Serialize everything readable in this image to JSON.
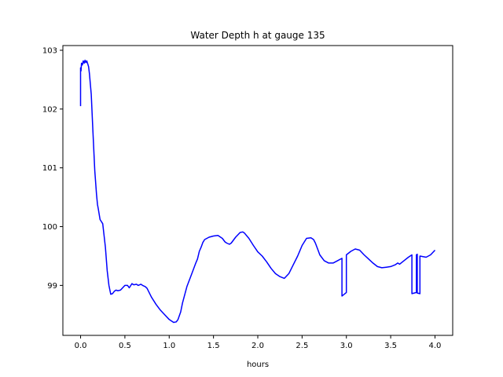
{
  "chart_data": {
    "type": "line",
    "title": "Water Depth h at gauge 135",
    "xlabel": "hours",
    "ylabel": "",
    "xlim": [
      -0.2,
      4.2
    ],
    "ylim": [
      98.15,
      103.08
    ],
    "xticks": [
      0.0,
      0.5,
      1.0,
      1.5,
      2.0,
      2.5,
      3.0,
      3.5,
      4.0
    ],
    "xtick_labels": [
      "0.0",
      "0.5",
      "1.0",
      "1.5",
      "2.0",
      "2.5",
      "3.0",
      "3.5",
      "4.0"
    ],
    "yticks": [
      99,
      100,
      101,
      102,
      103
    ],
    "ytick_labels": [
      "99",
      "100",
      "101",
      "102",
      "103"
    ],
    "grid": false,
    "series": [
      {
        "color": "#0000ff",
        "x": [
          0.0,
          0.0,
          0.005,
          0.01,
          0.02,
          0.03,
          0.04,
          0.05,
          0.06,
          0.07,
          0.08,
          0.09,
          0.1,
          0.12,
          0.14,
          0.16,
          0.18,
          0.19,
          0.2,
          0.22,
          0.25,
          0.28,
          0.3,
          0.32,
          0.34,
          0.36,
          0.38,
          0.4,
          0.42,
          0.45,
          0.5,
          0.53,
          0.55,
          0.58,
          0.6,
          0.63,
          0.65,
          0.68,
          0.7,
          0.73,
          0.75,
          0.8,
          0.85,
          0.9,
          0.95,
          1.0,
          1.05,
          1.08,
          1.1,
          1.13,
          1.15,
          1.2,
          1.25,
          1.3,
          1.32,
          1.34,
          1.36,
          1.38,
          1.4,
          1.45,
          1.5,
          1.55,
          1.6,
          1.63,
          1.65,
          1.68,
          1.7,
          1.75,
          1.8,
          1.83,
          1.85,
          1.9,
          1.95,
          2.0,
          2.05,
          2.1,
          2.15,
          2.2,
          2.25,
          2.3,
          2.35,
          2.4,
          2.45,
          2.5,
          2.55,
          2.6,
          2.63,
          2.65,
          2.68,
          2.7,
          2.75,
          2.8,
          2.85,
          2.9,
          2.95,
          2.95,
          3.0,
          3.0,
          3.05,
          3.1,
          3.15,
          3.2,
          3.25,
          3.3,
          3.35,
          3.4,
          3.45,
          3.5,
          3.55,
          3.58,
          3.6,
          3.65,
          3.7,
          3.74,
          3.74,
          3.79,
          3.79,
          3.8,
          3.8,
          3.83,
          3.83,
          3.9,
          3.95,
          4.0
        ],
        "y": [
          102.05,
          102.7,
          102.65,
          102.78,
          102.75,
          102.82,
          102.78,
          102.83,
          102.79,
          102.82,
          102.77,
          102.72,
          102.6,
          102.25,
          101.6,
          100.95,
          100.55,
          100.38,
          100.3,
          100.12,
          100.05,
          99.65,
          99.25,
          99.0,
          98.85,
          98.86,
          98.9,
          98.92,
          98.91,
          98.92,
          99.0,
          99.0,
          98.96,
          99.03,
          99.01,
          99.02,
          99.0,
          99.02,
          99.0,
          98.98,
          98.95,
          98.8,
          98.68,
          98.58,
          98.5,
          98.42,
          98.37,
          98.38,
          98.42,
          98.55,
          98.7,
          98.98,
          99.18,
          99.38,
          99.45,
          99.58,
          99.65,
          99.73,
          99.78,
          99.82,
          99.84,
          99.85,
          99.8,
          99.74,
          99.72,
          99.7,
          99.72,
          99.82,
          99.9,
          99.91,
          99.89,
          99.8,
          99.68,
          99.57,
          99.5,
          99.4,
          99.29,
          99.2,
          99.15,
          99.12,
          99.2,
          99.35,
          99.5,
          99.68,
          99.8,
          99.81,
          99.78,
          99.72,
          99.6,
          99.52,
          99.42,
          99.38,
          99.38,
          99.42,
          99.46,
          98.82,
          98.88,
          99.52,
          99.58,
          99.62,
          99.6,
          99.52,
          99.45,
          99.38,
          99.32,
          99.3,
          99.31,
          99.32,
          99.35,
          99.38,
          99.36,
          99.42,
          99.48,
          99.52,
          98.86,
          98.88,
          99.52,
          99.53,
          98.87,
          98.86,
          99.5,
          99.48,
          99.52,
          99.6
        ]
      }
    ]
  }
}
